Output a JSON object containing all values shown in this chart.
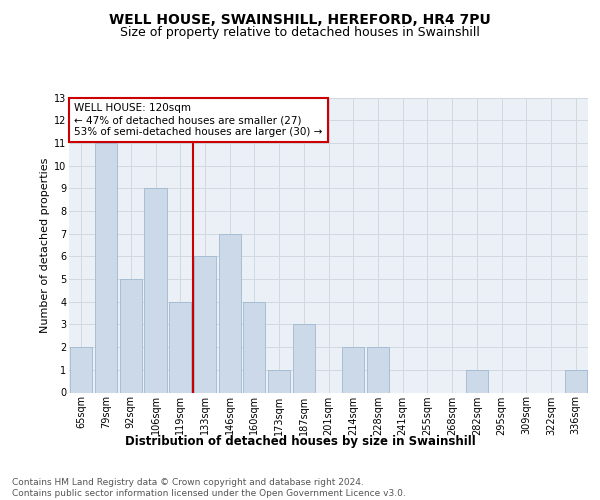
{
  "title": "WELL HOUSE, SWAINSHILL, HEREFORD, HR4 7PU",
  "subtitle": "Size of property relative to detached houses in Swainshill",
  "xlabel": "Distribution of detached houses by size in Swainshill",
  "ylabel": "Number of detached properties",
  "categories": [
    "65sqm",
    "79sqm",
    "92sqm",
    "106sqm",
    "119sqm",
    "133sqm",
    "146sqm",
    "160sqm",
    "173sqm",
    "187sqm",
    "201sqm",
    "214sqm",
    "228sqm",
    "241sqm",
    "255sqm",
    "268sqm",
    "282sqm",
    "295sqm",
    "309sqm",
    "322sqm",
    "336sqm"
  ],
  "values": [
    2,
    11,
    5,
    9,
    4,
    6,
    7,
    4,
    1,
    3,
    0,
    2,
    2,
    0,
    0,
    0,
    1,
    0,
    0,
    0,
    1
  ],
  "bar_color": "#ccd9e8",
  "bar_edge_color": "#a0b8d0",
  "annotation_title": "WELL HOUSE: 120sqm",
  "annotation_line1": "← 47% of detached houses are smaller (27)",
  "annotation_line2": "53% of semi-detached houses are larger (30) →",
  "annotation_box_color": "#cc0000",
  "ylim": [
    0,
    13
  ],
  "yticks": [
    0,
    1,
    2,
    3,
    4,
    5,
    6,
    7,
    8,
    9,
    10,
    11,
    12,
    13
  ],
  "grid_color": "#d0d8e0",
  "bg_color": "#eaf0f6",
  "footnote": "Contains HM Land Registry data © Crown copyright and database right 2024.\nContains public sector information licensed under the Open Government Licence v3.0.",
  "title_fontsize": 10,
  "subtitle_fontsize": 9,
  "xlabel_fontsize": 8.5,
  "ylabel_fontsize": 8,
  "tick_fontsize": 7,
  "annot_fontsize": 7.5,
  "footnote_fontsize": 6.5
}
